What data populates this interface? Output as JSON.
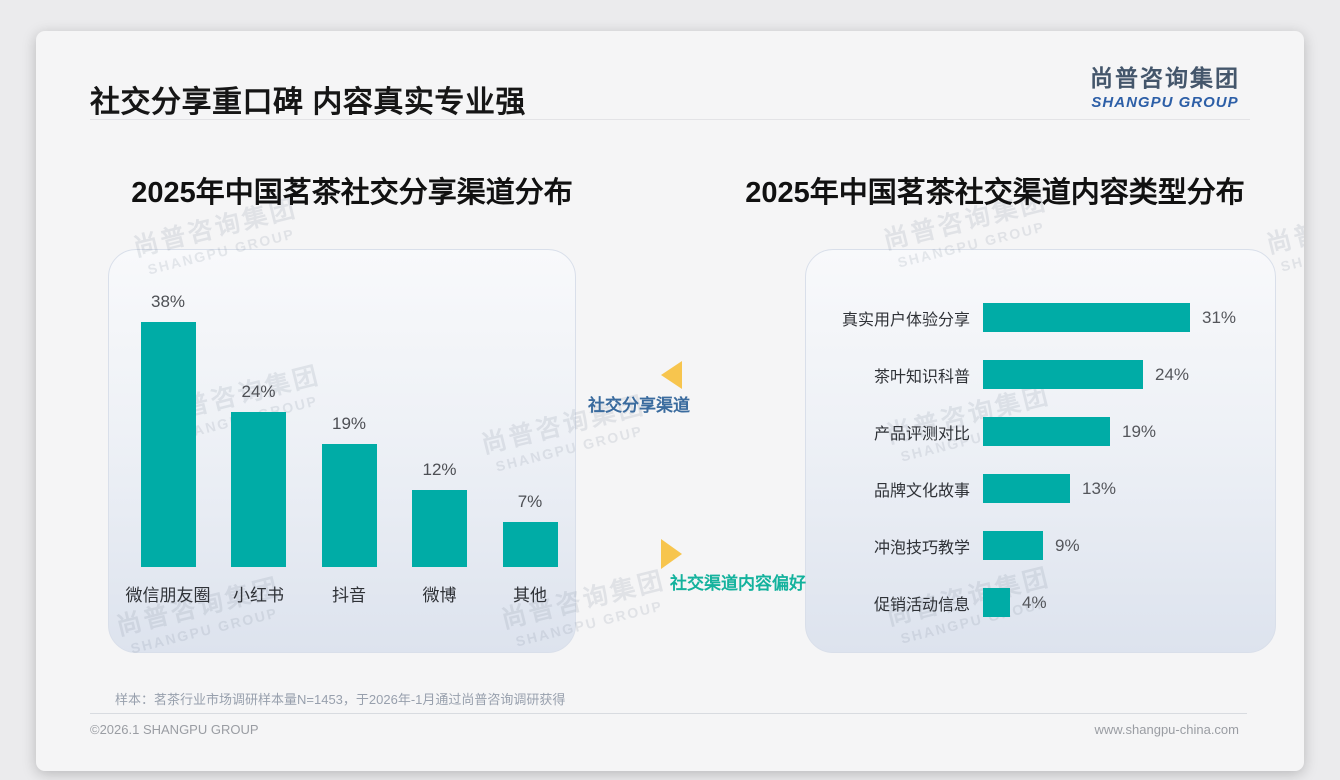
{
  "slide": {
    "title": "社交分享重口碑 内容真实专业强",
    "logo": {
      "cn": "尚普咨询集团",
      "en": "SHANGPU GROUP"
    },
    "watermark": {
      "cn": "尚普咨询集团",
      "en": "SHANGPU GROUP"
    },
    "sample_note": "样本：茗茶行业市场调研样本量N=1453，于2026年-1月通过尚普咨询调研获得",
    "footer": {
      "left": "©2026.1 SHANGPU GROUP",
      "right": "www.shangpu-china.com"
    }
  },
  "annotations": {
    "left_chart_label": "社交分享渠道",
    "right_chart_label": "社交渠道内容偏好"
  },
  "colors": {
    "bar_teal": "#00aca6",
    "accent_yellow": "#f7c54e",
    "annotation_blue": "#3a6b9e",
    "annotation_teal": "#14b29d"
  },
  "chart_data": [
    {
      "type": "bar",
      "title": "2025年中国茗茶社交分享渠道分布",
      "categories": [
        "微信朋友圈",
        "小红书",
        "抖音",
        "微博",
        "其他"
      ],
      "values": [
        38,
        24,
        19,
        12,
        7
      ],
      "unit": "%",
      "ylim": [
        0,
        40
      ],
      "grid": false,
      "data_labels": true,
      "legend": false
    },
    {
      "type": "bar-horizontal",
      "title": "2025年中国茗茶社交渠道内容类型分布",
      "categories": [
        "真实用户体验分享",
        "茶叶知识科普",
        "产品评测对比",
        "品牌文化故事",
        "冲泡技巧教学",
        "促销活动信息"
      ],
      "values": [
        31,
        24,
        19,
        13,
        9,
        4
      ],
      "unit": "%",
      "xlim": [
        0,
        35
      ],
      "grid": false,
      "data_labels": true,
      "legend": false
    }
  ]
}
